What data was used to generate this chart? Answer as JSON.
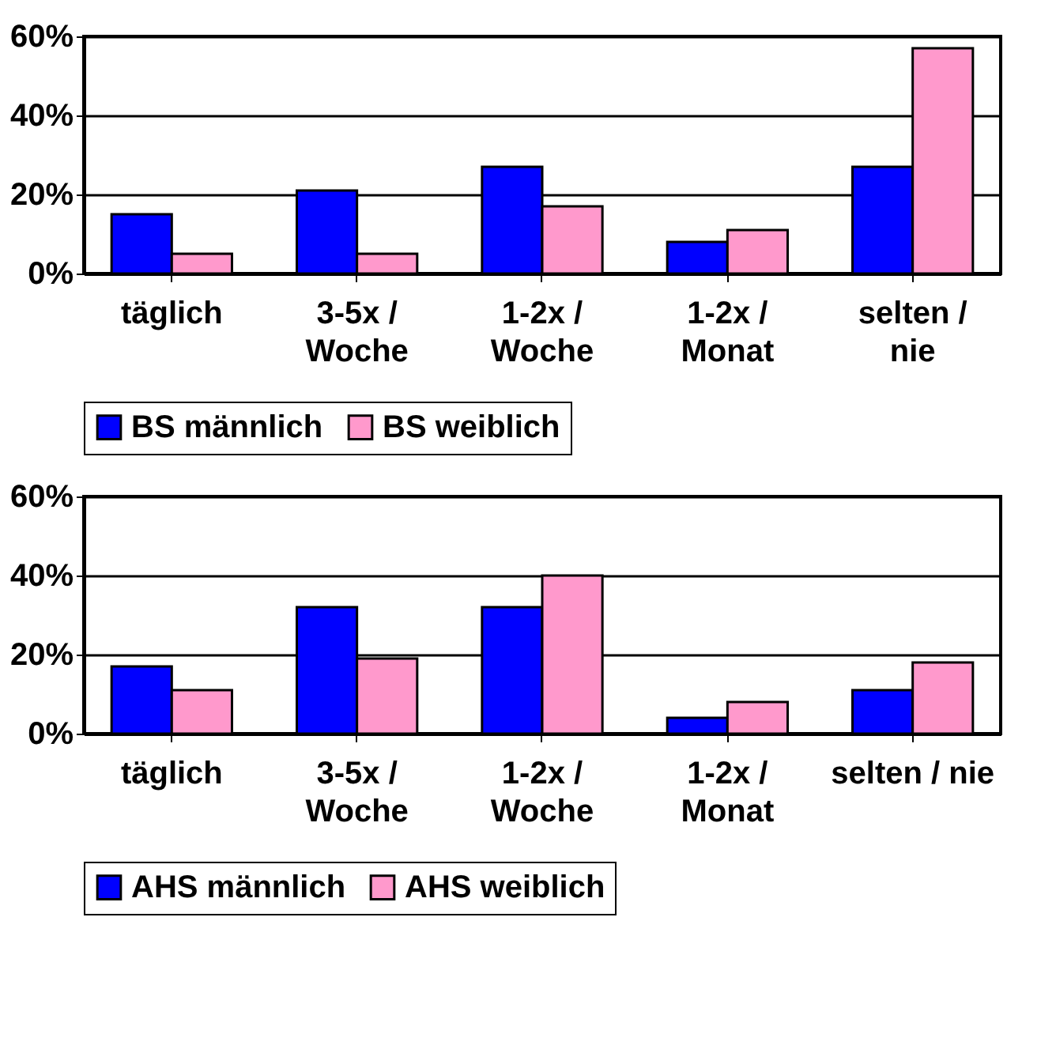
{
  "chart_data": [
    {
      "type": "bar",
      "categories": [
        "täglich",
        "3-5x /\nWoche",
        "1-2x /\nWoche",
        "1-2x /\nMonat",
        "selten /\nnie"
      ],
      "series": [
        {
          "name": "BS männlich",
          "color": "#0000ff",
          "values": [
            15,
            21,
            27,
            8,
            27
          ]
        },
        {
          "name": "BS weiblich",
          "color": "#ff99cc",
          "values": [
            5,
            5,
            17,
            11,
            57
          ]
        }
      ],
      "ylim": [
        0,
        60
      ],
      "yticks": [
        {
          "value": 0,
          "label": "0%"
        },
        {
          "value": 20,
          "label": "20%"
        },
        {
          "value": 40,
          "label": "40%"
        },
        {
          "value": 60,
          "label": "60%"
        }
      ],
      "grid": "y",
      "legend": "bottom"
    },
    {
      "type": "bar",
      "categories": [
        "täglich",
        "3-5x /\nWoche",
        "1-2x /\nWoche",
        "1-2x /\nMonat",
        "selten / nie"
      ],
      "series": [
        {
          "name": "AHS männlich",
          "color": "#0000ff",
          "values": [
            17,
            32,
            32,
            4,
            11
          ]
        },
        {
          "name": "AHS weiblich",
          "color": "#ff99cc",
          "values": [
            11,
            19,
            40,
            8,
            18
          ]
        }
      ],
      "ylim": [
        0,
        60
      ],
      "yticks": [
        {
          "value": 0,
          "label": "0%"
        },
        {
          "value": 20,
          "label": "20%"
        },
        {
          "value": 40,
          "label": "40%"
        },
        {
          "value": 60,
          "label": "60%"
        }
      ],
      "grid": "y",
      "legend": "bottom"
    }
  ]
}
